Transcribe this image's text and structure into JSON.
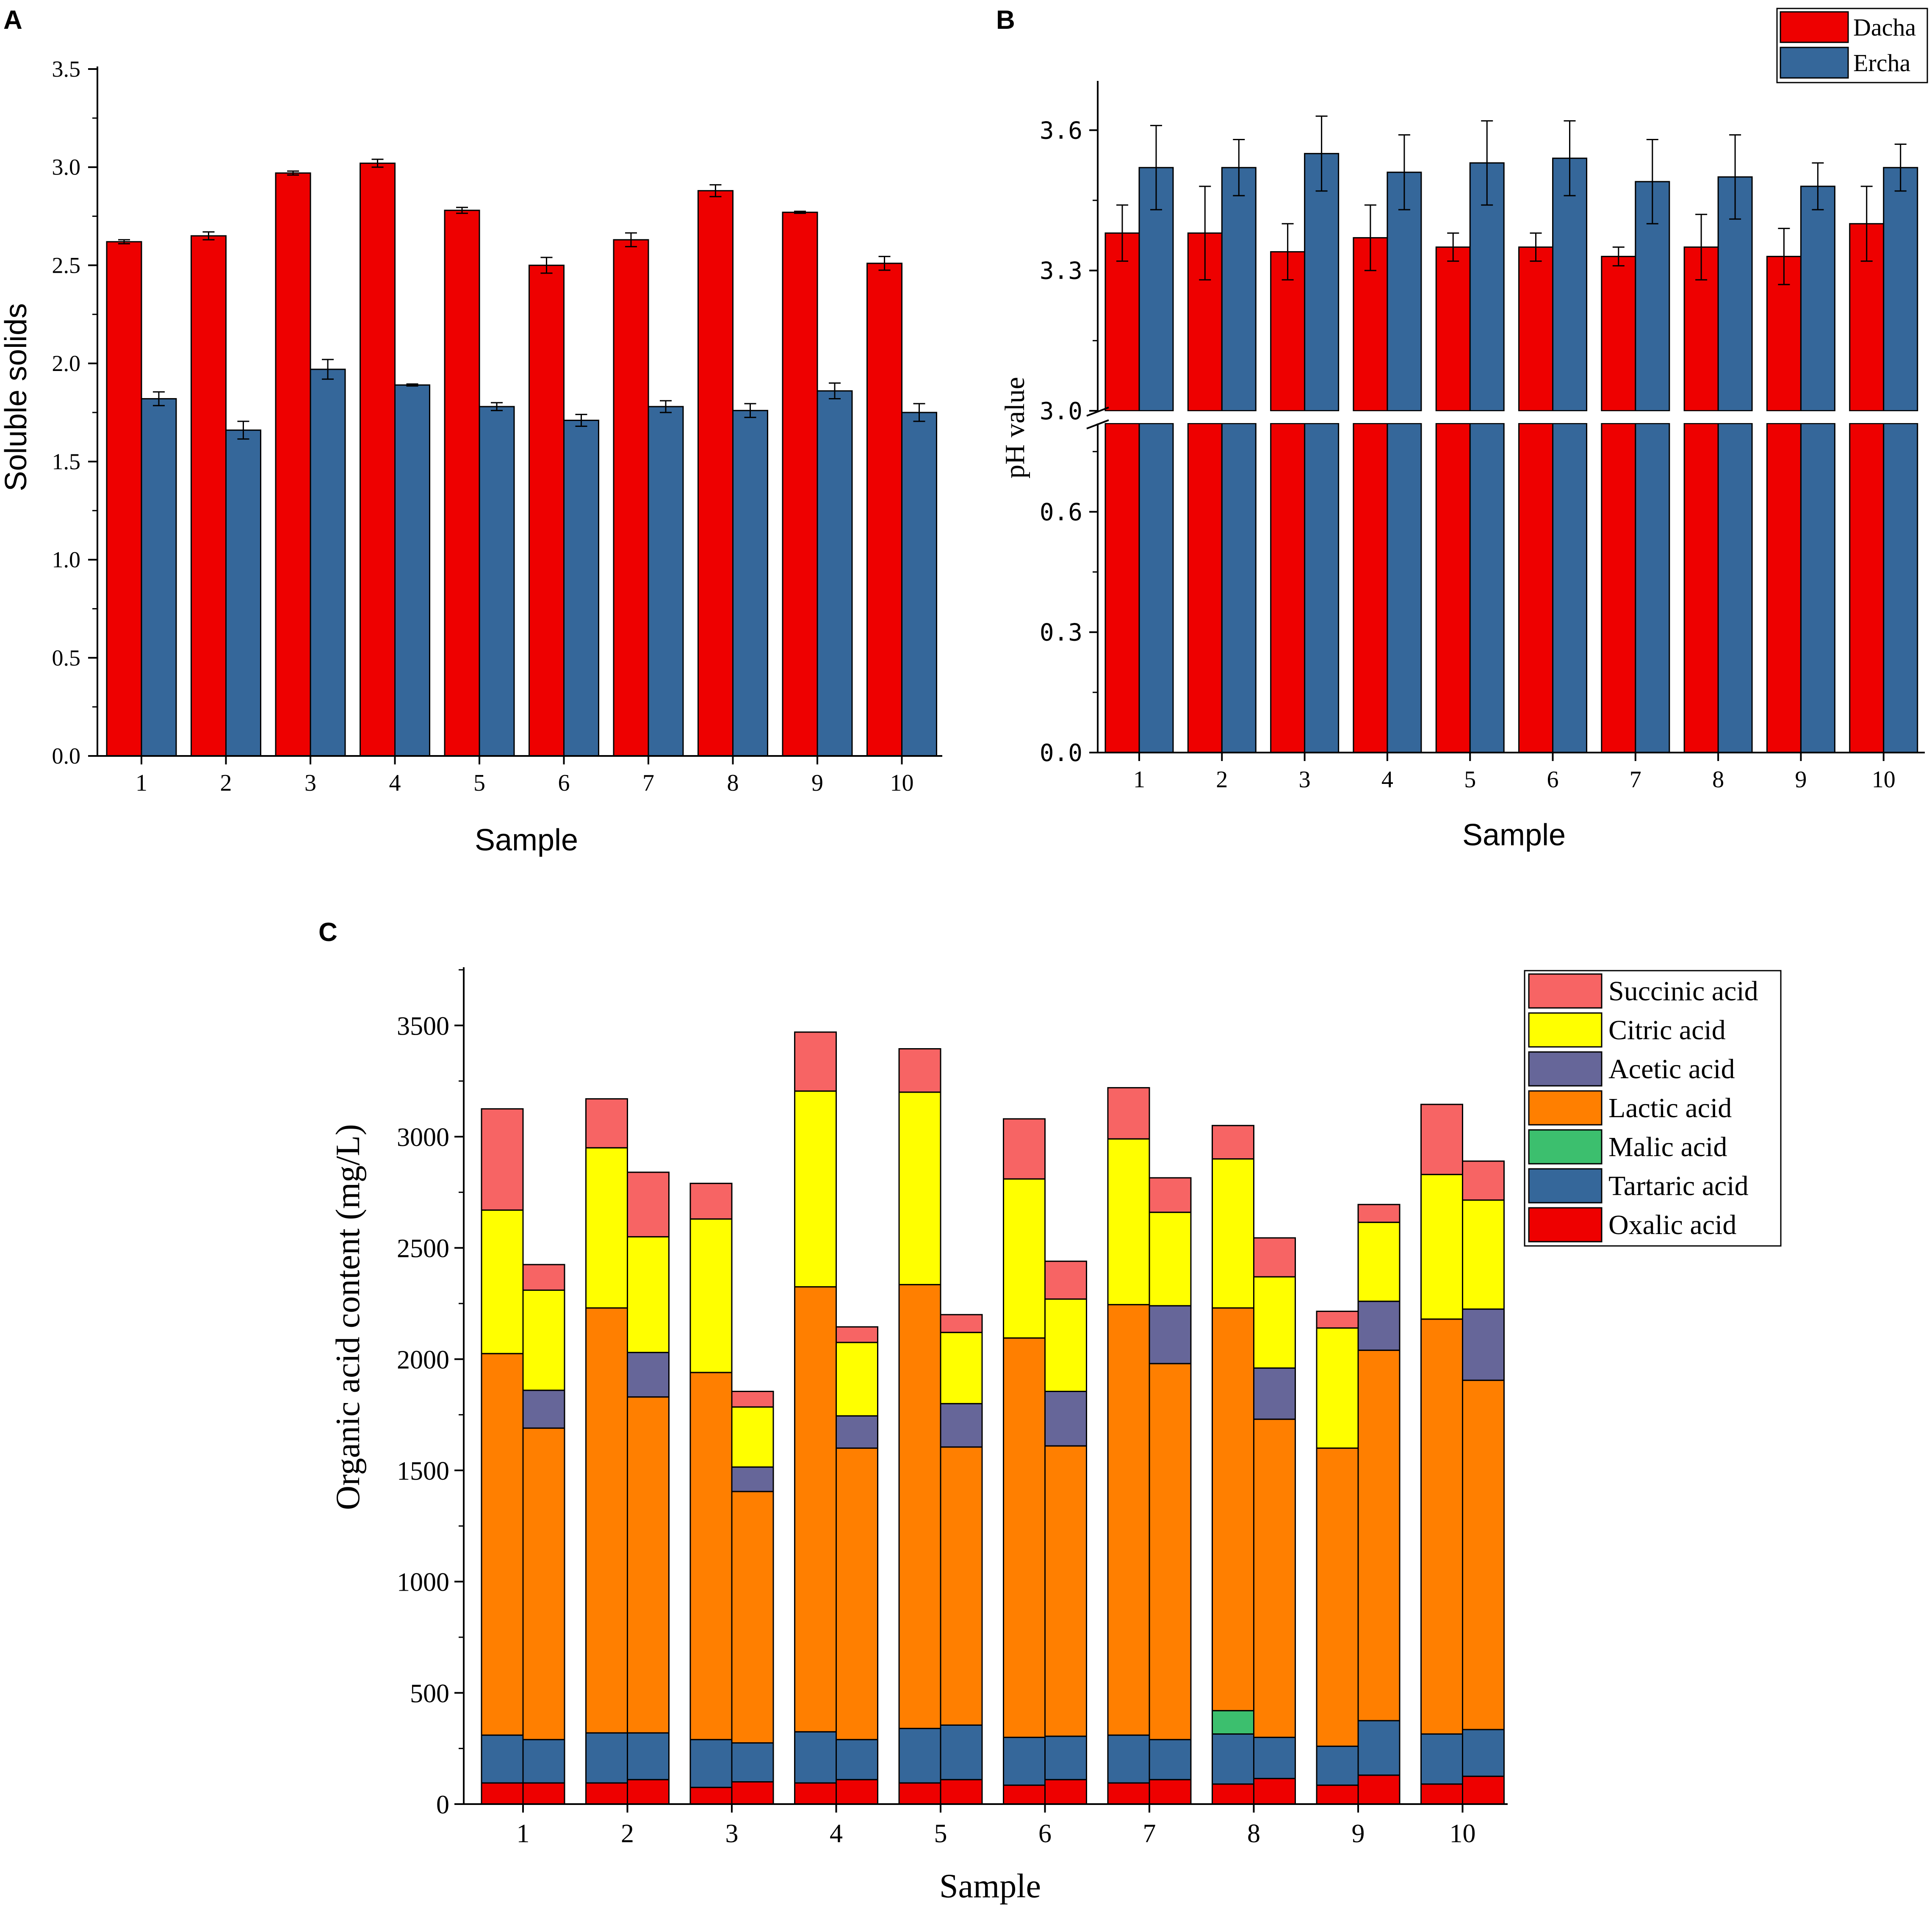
{
  "chart_data": [
    {
      "panel": "A",
      "type": "bar",
      "title": "",
      "xlabel": "Sample",
      "ylabel": "Soluble solids",
      "ylim": [
        0,
        3.5
      ],
      "yticks": [
        "0.0",
        "0.5",
        "1.0",
        "1.5",
        "2.0",
        "2.5",
        "3.0",
        "3.5"
      ],
      "categories": [
        "1",
        "2",
        "3",
        "4",
        "5",
        "6",
        "7",
        "8",
        "9",
        "10"
      ],
      "series": [
        {
          "name": "Dacha",
          "color": "#ee0000",
          "values": [
            2.62,
            2.65,
            2.97,
            3.02,
            2.78,
            2.5,
            2.63,
            2.88,
            2.77,
            2.51
          ],
          "errors": [
            0.01,
            0.02,
            0.01,
            0.02,
            0.015,
            0.04,
            0.035,
            0.03,
            0.005,
            0.035
          ]
        },
        {
          "name": "Ercha",
          "color": "#35679a",
          "values": [
            1.82,
            1.66,
            1.97,
            1.89,
            1.78,
            1.71,
            1.78,
            1.76,
            1.86,
            1.75
          ],
          "errors": [
            0.035,
            0.045,
            0.05,
            0.005,
            0.02,
            0.03,
            0.03,
            0.035,
            0.04,
            0.045
          ]
        }
      ]
    },
    {
      "panel": "B",
      "type": "bar",
      "title": "",
      "xlabel": "Sample",
      "ylabel": "pH value",
      "axis_break": {
        "lower": [
          0,
          0.82
        ],
        "upper": [
          3.0,
          3.7
        ]
      },
      "lower_ticks": [
        "0.0",
        "0.3",
        "0.6"
      ],
      "upper_ticks": [
        "3.0",
        "3.3",
        "3.6"
      ],
      "categories": [
        "1",
        "2",
        "3",
        "4",
        "5",
        "6",
        "7",
        "8",
        "9",
        "10"
      ],
      "legend": [
        "Dacha",
        "Ercha"
      ],
      "series": [
        {
          "name": "Dacha",
          "color": "#ee0000",
          "values": [
            3.38,
            3.38,
            3.34,
            3.37,
            3.35,
            3.35,
            3.33,
            3.35,
            3.33,
            3.4
          ],
          "errors": [
            0.06,
            0.1,
            0.06,
            0.07,
            0.03,
            0.03,
            0.02,
            0.07,
            0.06,
            0.08
          ]
        },
        {
          "name": "Ercha",
          "color": "#35679a",
          "values": [
            3.52,
            3.52,
            3.55,
            3.51,
            3.53,
            3.54,
            3.49,
            3.5,
            3.48,
            3.52
          ],
          "errors": [
            0.09,
            0.06,
            0.08,
            0.08,
            0.09,
            0.08,
            0.09,
            0.09,
            0.05,
            0.05
          ]
        }
      ]
    },
    {
      "panel": "C",
      "type": "bar",
      "stacked": true,
      "title": "",
      "xlabel": "Sample",
      "ylabel": "Organic acid content (mg/L)",
      "ylim": [
        0,
        3750
      ],
      "yticks": [
        "0",
        "500",
        "1000",
        "1500",
        "2000",
        "2500",
        "3000",
        "3500"
      ],
      "categories": [
        "1",
        "2",
        "3",
        "4",
        "5",
        "6",
        "7",
        "8",
        "9",
        "10"
      ],
      "legend": [
        "Succinic acid",
        "Citric acid",
        "Acetic acid",
        "Lactic acid",
        "Malic acid",
        "Tartaric acid",
        "Oxalic acid"
      ],
      "component_colors": {
        "Oxalic acid": "#ee0000",
        "Tartaric acid": "#35679a",
        "Malic acid": "#3cbf6e",
        "Lactic acid": "#ff7f00",
        "Acetic acid": "#666699",
        "Citric acid": "#ffff00",
        "Succinic acid": "#f76464"
      },
      "bars": [
        {
          "sample": "1",
          "group": "Dacha",
          "Oxalic acid": 95,
          "Tartaric acid": 215,
          "Malic acid": 0,
          "Lactic acid": 1715,
          "Acetic acid": 0,
          "Citric acid": 645,
          "Succinic acid": 455
        },
        {
          "sample": "1",
          "group": "Ercha",
          "Oxalic acid": 95,
          "Tartaric acid": 195,
          "Malic acid": 0,
          "Lactic acid": 1400,
          "Acetic acid": 170,
          "Citric acid": 450,
          "Succinic acid": 115
        },
        {
          "sample": "2",
          "group": "Dacha",
          "Oxalic acid": 95,
          "Tartaric acid": 225,
          "Malic acid": 0,
          "Lactic acid": 1910,
          "Acetic acid": 0,
          "Citric acid": 720,
          "Succinic acid": 220
        },
        {
          "sample": "2",
          "group": "Ercha",
          "Oxalic acid": 110,
          "Tartaric acid": 210,
          "Malic acid": 0,
          "Lactic acid": 1510,
          "Acetic acid": 200,
          "Citric acid": 520,
          "Succinic acid": 290
        },
        {
          "sample": "3",
          "group": "Dacha",
          "Oxalic acid": 75,
          "Tartaric acid": 215,
          "Malic acid": 0,
          "Lactic acid": 1650,
          "Acetic acid": 0,
          "Citric acid": 690,
          "Succinic acid": 160
        },
        {
          "sample": "3",
          "group": "Ercha",
          "Oxalic acid": 100,
          "Tartaric acid": 175,
          "Malic acid": 0,
          "Lactic acid": 1130,
          "Acetic acid": 110,
          "Citric acid": 270,
          "Succinic acid": 70
        },
        {
          "sample": "4",
          "group": "Dacha",
          "Oxalic acid": 95,
          "Tartaric acid": 230,
          "Malic acid": 0,
          "Lactic acid": 2000,
          "Acetic acid": 0,
          "Citric acid": 880,
          "Succinic acid": 265
        },
        {
          "sample": "4",
          "group": "Ercha",
          "Oxalic acid": 110,
          "Tartaric acid": 180,
          "Malic acid": 0,
          "Lactic acid": 1310,
          "Acetic acid": 145,
          "Citric acid": 330,
          "Succinic acid": 70
        },
        {
          "sample": "5",
          "group": "Dacha",
          "Oxalic acid": 95,
          "Tartaric acid": 245,
          "Malic acid": 0,
          "Lactic acid": 1995,
          "Acetic acid": 0,
          "Citric acid": 865,
          "Succinic acid": 195
        },
        {
          "sample": "5",
          "group": "Ercha",
          "Oxalic acid": 110,
          "Tartaric acid": 245,
          "Malic acid": 0,
          "Lactic acid": 1250,
          "Acetic acid": 195,
          "Citric acid": 320,
          "Succinic acid": 80
        },
        {
          "sample": "6",
          "group": "Dacha",
          "Oxalic acid": 85,
          "Tartaric acid": 215,
          "Malic acid": 0,
          "Lactic acid": 1795,
          "Acetic acid": 0,
          "Citric acid": 715,
          "Succinic acid": 270
        },
        {
          "sample": "6",
          "group": "Ercha",
          "Oxalic acid": 110,
          "Tartaric acid": 195,
          "Malic acid": 0,
          "Lactic acid": 1305,
          "Acetic acid": 245,
          "Citric acid": 415,
          "Succinic acid": 170
        },
        {
          "sample": "7",
          "group": "Dacha",
          "Oxalic acid": 95,
          "Tartaric acid": 215,
          "Malic acid": 0,
          "Lactic acid": 1935,
          "Acetic acid": 0,
          "Citric acid": 745,
          "Succinic acid": 230
        },
        {
          "sample": "7",
          "group": "Ercha",
          "Oxalic acid": 110,
          "Tartaric acid": 180,
          "Malic acid": 0,
          "Lactic acid": 1690,
          "Acetic acid": 260,
          "Citric acid": 420,
          "Succinic acid": 155
        },
        {
          "sample": "8",
          "group": "Dacha",
          "Oxalic acid": 90,
          "Tartaric acid": 225,
          "Malic acid": 105,
          "Lactic acid": 1810,
          "Acetic acid": 0,
          "Citric acid": 670,
          "Succinic acid": 150
        },
        {
          "sample": "8",
          "group": "Ercha",
          "Oxalic acid": 115,
          "Tartaric acid": 185,
          "Malic acid": 0,
          "Lactic acid": 1430,
          "Acetic acid": 230,
          "Citric acid": 410,
          "Succinic acid": 175
        },
        {
          "sample": "9",
          "group": "Dacha",
          "Oxalic acid": 85,
          "Tartaric acid": 175,
          "Malic acid": 0,
          "Lactic acid": 1340,
          "Acetic acid": 0,
          "Citric acid": 540,
          "Succinic acid": 75
        },
        {
          "sample": "9",
          "group": "Ercha",
          "Oxalic acid": 130,
          "Tartaric acid": 245,
          "Malic acid": 0,
          "Lactic acid": 1665,
          "Acetic acid": 220,
          "Citric acid": 355,
          "Succinic acid": 80
        },
        {
          "sample": "10",
          "group": "Dacha",
          "Oxalic acid": 90,
          "Tartaric acid": 225,
          "Malic acid": 0,
          "Lactic acid": 1865,
          "Acetic acid": 0,
          "Citric acid": 650,
          "Succinic acid": 315
        },
        {
          "sample": "10",
          "group": "Ercha",
          "Oxalic acid": 125,
          "Tartaric acid": 210,
          "Malic acid": 0,
          "Lactic acid": 1570,
          "Acetic acid": 320,
          "Citric acid": 490,
          "Succinic acid": 175
        }
      ]
    }
  ]
}
